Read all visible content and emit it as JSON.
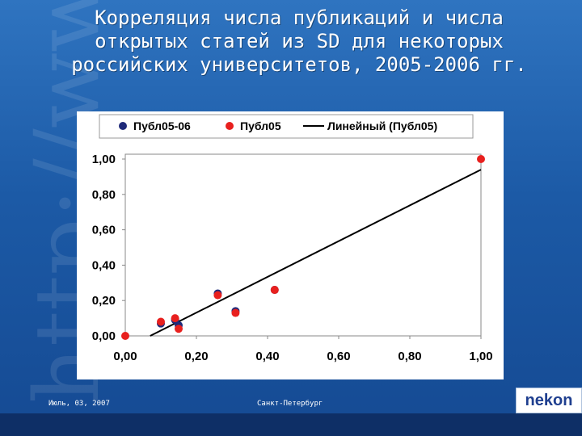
{
  "slide": {
    "title": "Корреляция числа публикаций и числа открытых статей из SD для  некоторых российских университетов, 2005-2006 гг.",
    "footer_date": "Июль, 03, 2007",
    "footer_place": "Санкт-Петербург",
    "logo_text": "nekon",
    "background_color": "#1c5aa6",
    "decor_text": "http://www"
  },
  "chart_data": {
    "type": "scatter",
    "title": "",
    "xlabel": "",
    "ylabel": "",
    "xlim": [
      0,
      1
    ],
    "ylim": [
      0,
      1
    ],
    "x_ticks": [
      "0,00",
      "0,20",
      "0,40",
      "0,60",
      "0,80",
      "1,00"
    ],
    "y_ticks": [
      "0,00",
      "0,20",
      "0,40",
      "0,60",
      "0,80",
      "1,00"
    ],
    "grid": false,
    "legend_position": "top",
    "series": [
      {
        "name": "Публ05-06",
        "color": "#1f2a7a",
        "points": [
          [
            0.1,
            0.07
          ],
          [
            0.14,
            0.09
          ],
          [
            0.15,
            0.06
          ],
          [
            0.26,
            0.24
          ],
          [
            0.31,
            0.14
          ],
          [
            0.42,
            0.26
          ]
        ]
      },
      {
        "name": "Публ05",
        "color": "#e8201e",
        "points": [
          [
            0.0,
            0.0
          ],
          [
            0.1,
            0.08
          ],
          [
            0.14,
            0.1
          ],
          [
            0.15,
            0.04
          ],
          [
            0.26,
            0.23
          ],
          [
            0.31,
            0.13
          ],
          [
            0.42,
            0.26
          ],
          [
            1.0,
            1.0
          ]
        ]
      }
    ],
    "trendline": {
      "name": "Линейный (Публ05)",
      "color": "#000000",
      "from": [
        0.07,
        0.0
      ],
      "to": [
        1.0,
        0.94
      ]
    }
  }
}
